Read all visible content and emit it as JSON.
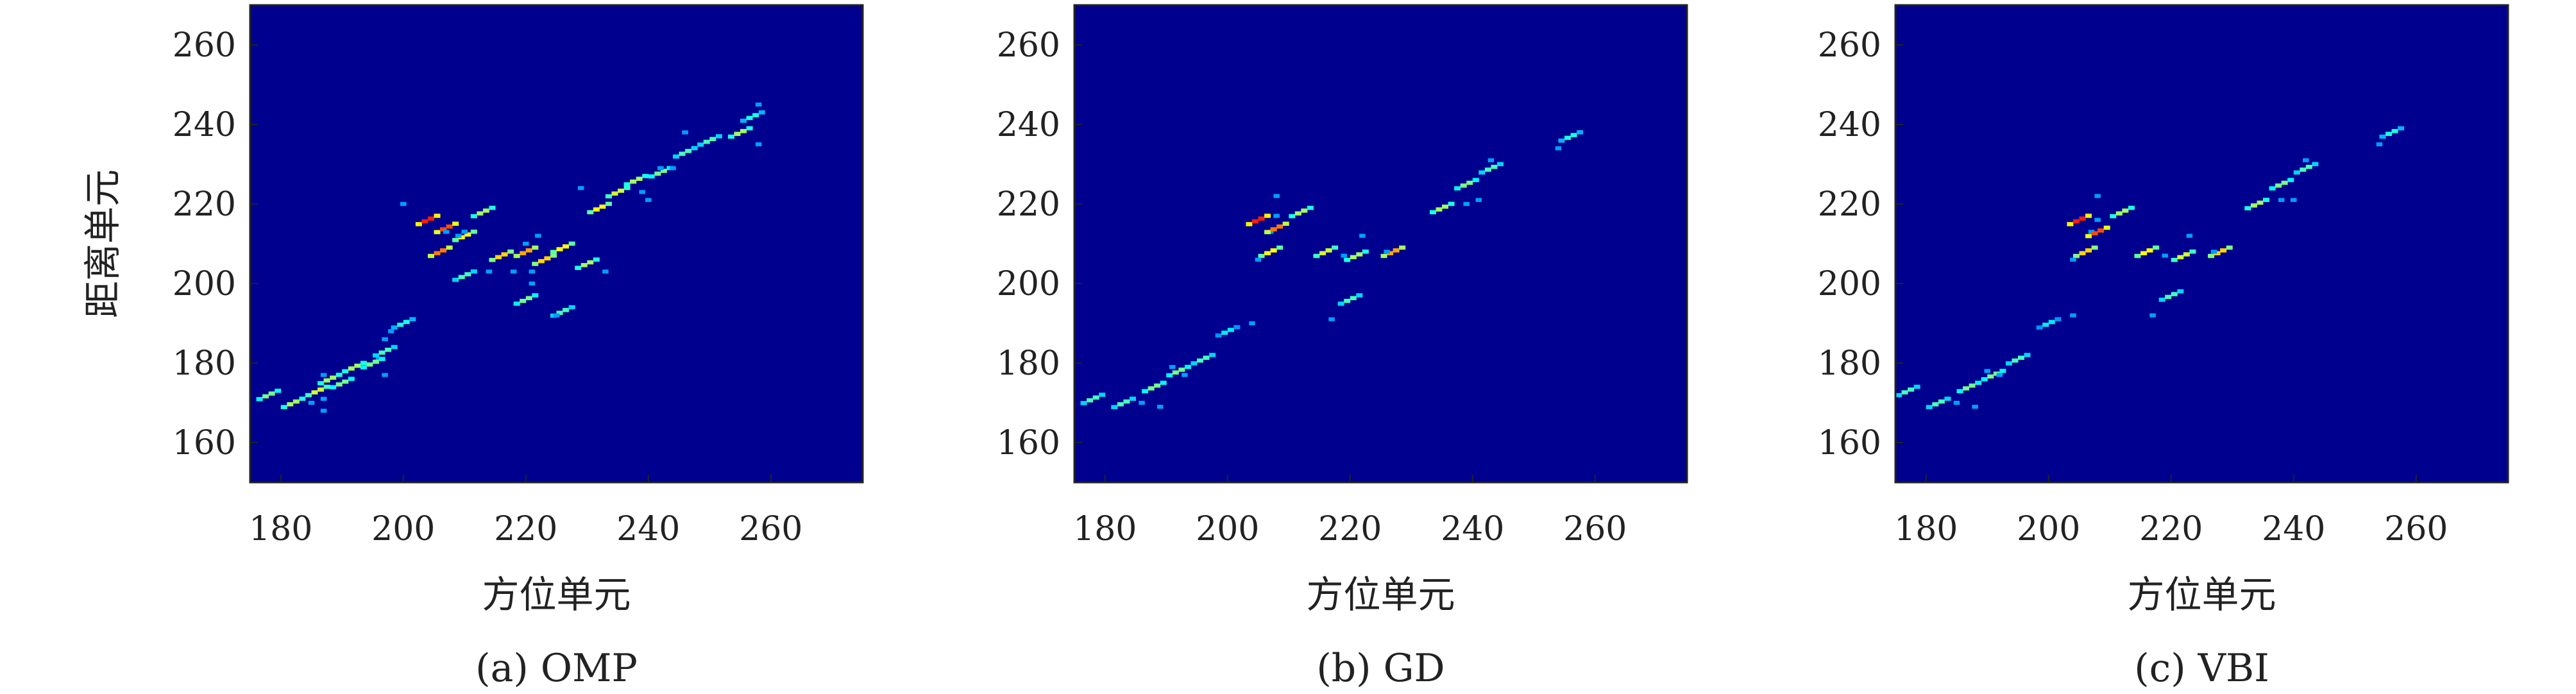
{
  "chart_data": [
    {
      "type": "heatmap",
      "caption": "(a) OMP",
      "xlabel": "方位单元",
      "ylabel": "距离单元",
      "xlim": [
        175,
        275
      ],
      "ylim": [
        150,
        270
      ],
      "xticks": [
        "180",
        "200",
        "220",
        "240",
        "260"
      ],
      "yticks": [
        "160",
        "180",
        "200",
        "220",
        "240",
        "260"
      ],
      "colormap": "jet",
      "background": "#00008f",
      "scatterers": [
        {
          "x": 178,
          "y": 172,
          "v": 0.55
        },
        {
          "x": 182,
          "y": 170,
          "v": 0.6
        },
        {
          "x": 186,
          "y": 173,
          "v": 0.65
        },
        {
          "x": 188,
          "y": 176,
          "v": 0.6
        },
        {
          "x": 190,
          "y": 175,
          "v": 0.55
        },
        {
          "x": 192,
          "y": 179,
          "v": 0.6
        },
        {
          "x": 195,
          "y": 180,
          "v": 0.55
        },
        {
          "x": 197,
          "y": 183,
          "v": 0.5
        },
        {
          "x": 200,
          "y": 190,
          "v": 0.45
        },
        {
          "x": 204,
          "y": 216,
          "v": 0.95
        },
        {
          "x": 207,
          "y": 214,
          "v": 0.9
        },
        {
          "x": 206,
          "y": 208,
          "v": 0.85
        },
        {
          "x": 210,
          "y": 212,
          "v": 0.7
        },
        {
          "x": 213,
          "y": 218,
          "v": 0.6
        },
        {
          "x": 210,
          "y": 202,
          "v": 0.5
        },
        {
          "x": 216,
          "y": 207,
          "v": 0.75
        },
        {
          "x": 220,
          "y": 208,
          "v": 0.8
        },
        {
          "x": 223,
          "y": 206,
          "v": 0.75
        },
        {
          "x": 226,
          "y": 209,
          "v": 0.7
        },
        {
          "x": 230,
          "y": 205,
          "v": 0.6
        },
        {
          "x": 220,
          "y": 196,
          "v": 0.55
        },
        {
          "x": 226,
          "y": 193,
          "v": 0.5
        },
        {
          "x": 232,
          "y": 219,
          "v": 0.7
        },
        {
          "x": 235,
          "y": 223,
          "v": 0.65
        },
        {
          "x": 238,
          "y": 226,
          "v": 0.6
        },
        {
          "x": 242,
          "y": 228,
          "v": 0.55
        },
        {
          "x": 246,
          "y": 233,
          "v": 0.5
        },
        {
          "x": 250,
          "y": 236,
          "v": 0.5
        },
        {
          "x": 255,
          "y": 238,
          "v": 0.6
        },
        {
          "x": 257,
          "y": 242,
          "v": 0.45
        }
      ]
    },
    {
      "type": "heatmap",
      "caption": "(b) GD",
      "xlabel": "方位单元",
      "ylabel": "",
      "xlim": [
        175,
        275
      ],
      "ylim": [
        150,
        270
      ],
      "xticks": [
        "180",
        "200",
        "220",
        "240",
        "260"
      ],
      "yticks": [
        "160",
        "180",
        "200",
        "220",
        "240",
        "260"
      ],
      "colormap": "jet",
      "background": "#00008f",
      "scatterers": [
        {
          "x": 178,
          "y": 171,
          "v": 0.5
        },
        {
          "x": 183,
          "y": 170,
          "v": 0.5
        },
        {
          "x": 188,
          "y": 174,
          "v": 0.55
        },
        {
          "x": 192,
          "y": 178,
          "v": 0.55
        },
        {
          "x": 196,
          "y": 181,
          "v": 0.5
        },
        {
          "x": 200,
          "y": 188,
          "v": 0.4
        },
        {
          "x": 205,
          "y": 216,
          "v": 0.95
        },
        {
          "x": 208,
          "y": 214,
          "v": 0.85
        },
        {
          "x": 207,
          "y": 208,
          "v": 0.7
        },
        {
          "x": 212,
          "y": 218,
          "v": 0.6
        },
        {
          "x": 216,
          "y": 208,
          "v": 0.65
        },
        {
          "x": 221,
          "y": 207,
          "v": 0.6
        },
        {
          "x": 227,
          "y": 208,
          "v": 0.8
        },
        {
          "x": 220,
          "y": 196,
          "v": 0.5
        },
        {
          "x": 235,
          "y": 219,
          "v": 0.6
        },
        {
          "x": 239,
          "y": 225,
          "v": 0.55
        },
        {
          "x": 243,
          "y": 229,
          "v": 0.5
        },
        {
          "x": 256,
          "y": 237,
          "v": 0.45
        }
      ]
    },
    {
      "type": "heatmap",
      "caption": "(c) VBI",
      "xlabel": "方位单元",
      "ylabel": "",
      "xlim": [
        175,
        275
      ],
      "ylim": [
        150,
        270
      ],
      "xticks": [
        "180",
        "200",
        "220",
        "240",
        "260"
      ],
      "yticks": [
        "160",
        "180",
        "200",
        "220",
        "240",
        "260"
      ],
      "colormap": "jet",
      "background": "#00008f",
      "scatterers": [
        {
          "x": 177,
          "y": 173,
          "v": 0.5
        },
        {
          "x": 182,
          "y": 170,
          "v": 0.5
        },
        {
          "x": 187,
          "y": 174,
          "v": 0.55
        },
        {
          "x": 191,
          "y": 177,
          "v": 0.55
        },
        {
          "x": 195,
          "y": 181,
          "v": 0.5
        },
        {
          "x": 200,
          "y": 190,
          "v": 0.4
        },
        {
          "x": 205,
          "y": 216,
          "v": 0.95
        },
        {
          "x": 208,
          "y": 213,
          "v": 0.9
        },
        {
          "x": 206,
          "y": 208,
          "v": 0.75
        },
        {
          "x": 212,
          "y": 218,
          "v": 0.6
        },
        {
          "x": 216,
          "y": 208,
          "v": 0.7
        },
        {
          "x": 222,
          "y": 207,
          "v": 0.65
        },
        {
          "x": 228,
          "y": 208,
          "v": 0.75
        },
        {
          "x": 220,
          "y": 197,
          "v": 0.5
        },
        {
          "x": 234,
          "y": 220,
          "v": 0.6
        },
        {
          "x": 238,
          "y": 225,
          "v": 0.55
        },
        {
          "x": 242,
          "y": 229,
          "v": 0.5
        },
        {
          "x": 256,
          "y": 238,
          "v": 0.45
        }
      ]
    }
  ]
}
